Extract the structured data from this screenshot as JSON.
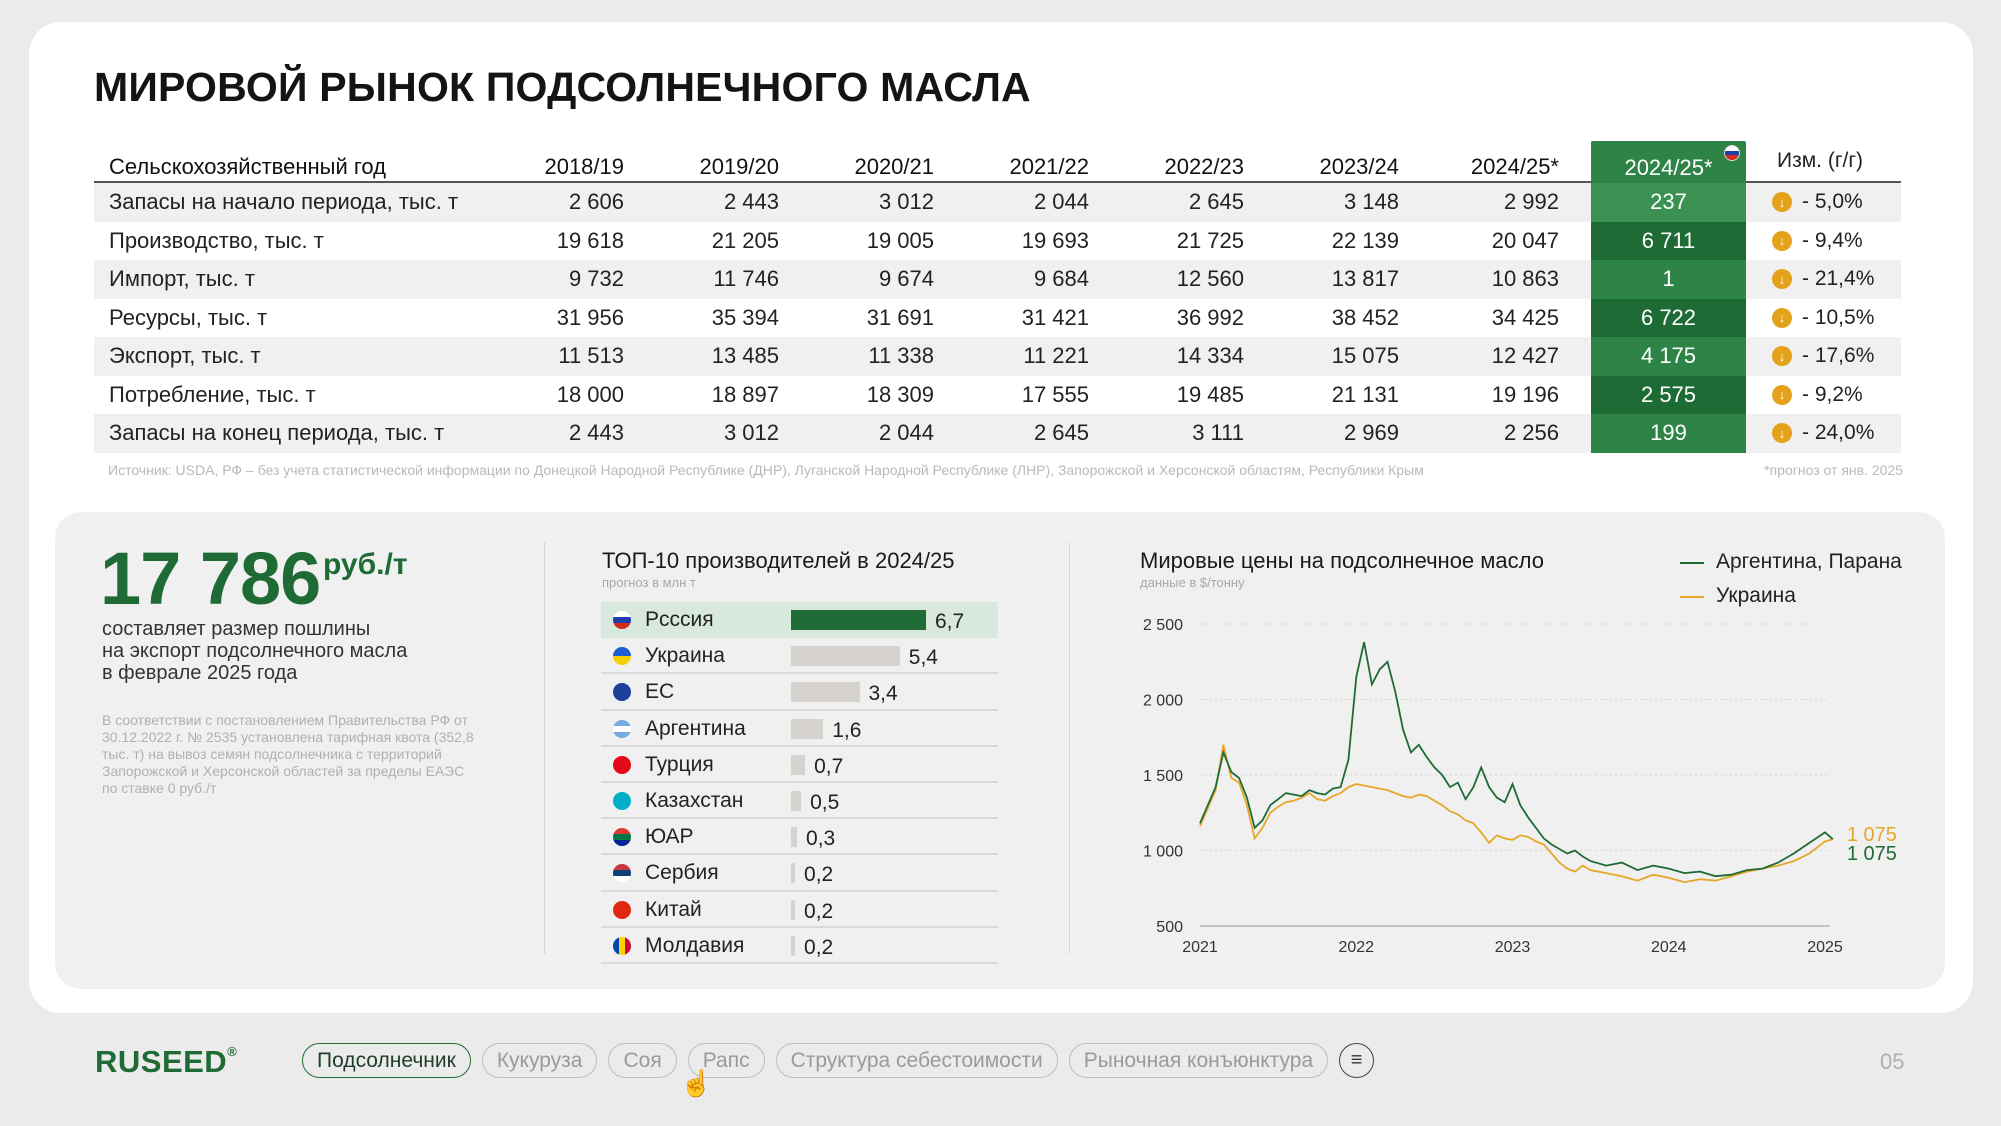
{
  "title": "МИРОВОЙ РЫНОК ПОДСОЛНЕЧНОГО МАСЛА",
  "table": {
    "header_label": "Сельскохозяйственный год",
    "years": [
      "2018/19",
      "2019/20",
      "2020/21",
      "2021/22",
      "2022/23",
      "2023/24",
      "2024/25*"
    ],
    "russia_col": "2024/25*",
    "change_col": "Изм. (г/г)",
    "rows": [
      {
        "label": "Запасы на начало периода, тыс. т",
        "values": [
          "2 606",
          "2 443",
          "3 012",
          "2 044",
          "2 645",
          "3 148",
          "2 992"
        ],
        "russia": "237",
        "change": "- 5,0%"
      },
      {
        "label": "Производство, тыс. т",
        "values": [
          "19 618",
          "21 205",
          "19 005",
          "19 693",
          "21 725",
          "22 139",
          "20 047"
        ],
        "russia": "6 711",
        "change": "- 9,4%"
      },
      {
        "label": "Импорт, тыс. т",
        "values": [
          "9 732",
          "11 746",
          "9 674",
          "9 684",
          "12 560",
          "13 817",
          "10 863"
        ],
        "russia": "1",
        "change": "- 21,4%"
      },
      {
        "label": "Ресурсы, тыс. т",
        "values": [
          "31 956",
          "35 394",
          "31 691",
          "31 421",
          "36 992",
          "38 452",
          "34 425"
        ],
        "russia": "6 722",
        "change": "- 10,5%"
      },
      {
        "label": "Экспорт, тыс. т",
        "values": [
          "11 513",
          "13 485",
          "11 338",
          "11 221",
          "14 334",
          "15 075",
          "12 427"
        ],
        "russia": "4 175",
        "change": "- 17,6%"
      },
      {
        "label": "Потребление, тыс. т",
        "values": [
          "18 000",
          "18 897",
          "18 309",
          "17 555",
          "19 485",
          "21 131",
          "19 196"
        ],
        "russia": "2 575",
        "change": "- 9,2%"
      },
      {
        "label": "Запасы на конец периода, тыс. т",
        "values": [
          "2 443",
          "3 012",
          "2 044",
          "2 645",
          "3 111",
          "2 969",
          "2 256"
        ],
        "russia": "199",
        "change": "- 24,0%"
      }
    ],
    "source": "Источник: USDA, РФ – без учета статистической информации по Донецкой Народной Республике (ДНР), Луганской Народной Республике (ЛНР), Запорожской и Херсонской областям, Республики Крым",
    "footnote": "*прогноз от янв. 2025"
  },
  "duty": {
    "value": "17 786",
    "unit": "руб./т",
    "desc_line1": "составляет размер пошлины",
    "desc_line2": "на экспорт подсолнечного масла",
    "desc_line3": "в феврале 2025 года",
    "note": "В соответствии с постановлением Правительства РФ от 30.12.2022 г. № 2535 установлена тарифная квота (352,8 тыс. т) на вывоз семян подсолнечника с территорий Запорожской и Херсонской областей за пределы ЕАЭС по ставке 0 руб./т"
  },
  "top10": {
    "title": "ТОП-10 производителей в 2024/25",
    "subtitle": "прогноз в млн т",
    "items": [
      {
        "country": "Рсссия",
        "value": 6.7,
        "label": "6,7",
        "flag": "russia-flag"
      },
      {
        "country": "Украина",
        "value": 5.4,
        "label": "5,4",
        "flag": "ukraine-flag"
      },
      {
        "country": "ЕС",
        "value": 3.4,
        "label": "3,4",
        "flag": "eu-flag"
      },
      {
        "country": "Аргентина",
        "value": 1.6,
        "label": "1,6",
        "flag": "argentina-flag"
      },
      {
        "country": "Турция",
        "value": 0.7,
        "label": "0,7",
        "flag": "turkey-flag"
      },
      {
        "country": "Казахстан",
        "value": 0.5,
        "label": "0,5",
        "flag": "kazakhstan-flag"
      },
      {
        "country": "ЮАР",
        "value": 0.3,
        "label": "0,3",
        "flag": "south-africa-flag"
      },
      {
        "country": "Сербия",
        "value": 0.2,
        "label": "0,2",
        "flag": "serbia-flag"
      },
      {
        "country": "Китай",
        "value": 0.2,
        "label": "0,2",
        "flag": "china-flag"
      },
      {
        "country": "Молдавия",
        "value": 0.2,
        "label": "0,2",
        "flag": "moldova-flag"
      }
    ]
  },
  "chart_data": {
    "type": "line",
    "title": "Мировые цены на подсолнечное масло",
    "subtitle": "данные в $/тонну",
    "ylim": [
      500,
      2500
    ],
    "yticks": [
      "2 500",
      "2 000",
      "1 500",
      "1 000",
      "500"
    ],
    "ytick_values": [
      2500,
      2000,
      1500,
      1000,
      500
    ],
    "xlim": [
      2021.0,
      2025.05
    ],
    "xticks": [
      "2021",
      "2022",
      "2023",
      "2024",
      "2025"
    ],
    "xtick_values": [
      2021,
      2022,
      2023,
      2024,
      2025
    ],
    "grid": true,
    "legend_position": "top-right",
    "series": [
      {
        "name": "Аргентина, Парана",
        "color": "#1f6b35",
        "end_label": "1 075",
        "x": [
          2021.0,
          2021.05,
          2021.1,
          2021.15,
          2021.2,
          2021.25,
          2021.3,
          2021.35,
          2021.4,
          2021.45,
          2021.5,
          2021.55,
          2021.6,
          2021.65,
          2021.7,
          2021.75,
          2021.8,
          2021.85,
          2021.9,
          2021.95,
          2022.0,
          2022.05,
          2022.1,
          2022.15,
          2022.2,
          2022.25,
          2022.3,
          2022.35,
          2022.4,
          2022.45,
          2022.5,
          2022.55,
          2022.6,
          2022.65,
          2022.7,
          2022.75,
          2022.8,
          2022.85,
          2022.9,
          2022.95,
          2023.0,
          2023.05,
          2023.1,
          2023.15,
          2023.2,
          2023.25,
          2023.3,
          2023.35,
          2023.4,
          2023.45,
          2023.5,
          2023.6,
          2023.7,
          2023.8,
          2023.9,
          2024.0,
          2024.1,
          2024.2,
          2024.3,
          2024.4,
          2024.5,
          2024.6,
          2024.7,
          2024.8,
          2024.9,
          2025.0,
          2025.05
        ],
        "y": [
          1180,
          1300,
          1420,
          1650,
          1520,
          1480,
          1350,
          1150,
          1200,
          1300,
          1340,
          1380,
          1370,
          1360,
          1400,
          1380,
          1370,
          1410,
          1420,
          1600,
          2150,
          2380,
          2100,
          2200,
          2250,
          2050,
          1800,
          1650,
          1700,
          1620,
          1550,
          1500,
          1420,
          1450,
          1340,
          1420,
          1550,
          1420,
          1350,
          1320,
          1440,
          1300,
          1220,
          1150,
          1080,
          1040,
          1010,
          980,
          1000,
          960,
          930,
          900,
          920,
          870,
          900,
          880,
          850,
          860,
          830,
          840,
          870,
          880,
          920,
          980,
          1050,
          1120,
          1075
        ]
      },
      {
        "name": "Украина",
        "color": "#e6a728",
        "end_label": "1 075",
        "x": [
          2021.0,
          2021.05,
          2021.1,
          2021.15,
          2021.2,
          2021.25,
          2021.3,
          2021.35,
          2021.4,
          2021.45,
          2021.5,
          2021.55,
          2021.6,
          2021.65,
          2021.7,
          2021.75,
          2021.8,
          2021.85,
          2021.9,
          2021.95,
          2022.0,
          2022.05,
          2022.1,
          2022.15,
          2022.2,
          2022.25,
          2022.3,
          2022.35,
          2022.4,
          2022.45,
          2022.5,
          2022.55,
          2022.6,
          2022.65,
          2022.7,
          2022.75,
          2022.8,
          2022.85,
          2022.9,
          2022.95,
          2023.0,
          2023.05,
          2023.1,
          2023.15,
          2023.2,
          2023.25,
          2023.3,
          2023.35,
          2023.4,
          2023.45,
          2023.5,
          2023.6,
          2023.7,
          2023.8,
          2023.9,
          2024.0,
          2024.1,
          2024.2,
          2024.3,
          2024.4,
          2024.5,
          2024.6,
          2024.7,
          2024.8,
          2024.9,
          2025.0,
          2025.05
        ],
        "y": [
          1160,
          1280,
          1400,
          1700,
          1480,
          1450,
          1300,
          1080,
          1150,
          1250,
          1290,
          1320,
          1330,
          1350,
          1380,
          1340,
          1330,
          1360,
          1380,
          1420,
          1440,
          1430,
          1420,
          1410,
          1400,
          1380,
          1360,
          1350,
          1370,
          1360,
          1330,
          1300,
          1260,
          1240,
          1200,
          1180,
          1120,
          1050,
          1100,
          1080,
          1070,
          1100,
          1090,
          1060,
          1040,
          980,
          920,
          880,
          860,
          900,
          870,
          850,
          830,
          800,
          840,
          820,
          790,
          810,
          800,
          830,
          860,
          880,
          900,
          930,
          980,
          1060,
          1075
        ]
      }
    ]
  },
  "footer": {
    "logo": "RUSEED",
    "logo_mark": "®",
    "nav": [
      "Подсолнечник",
      "Кукуруза",
      "Соя",
      "Рапс",
      "Структура себестоимости",
      "Рыночная конъюнктура"
    ],
    "page": "05"
  }
}
